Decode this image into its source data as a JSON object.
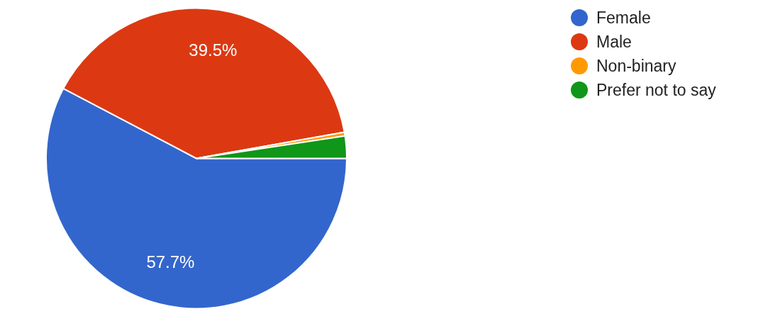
{
  "chart_data": {
    "type": "pie",
    "categories": [
      "Female",
      "Male",
      "Non-binary",
      "Prefer not to say"
    ],
    "values": [
      57.7,
      39.5,
      0.4,
      2.4
    ],
    "colors": [
      "#3366cc",
      "#dc3912",
      "#ff9900",
      "#109618"
    ],
    "value_labels": [
      "57.7%",
      "39.5%",
      null,
      null
    ],
    "legend": "top right"
  }
}
